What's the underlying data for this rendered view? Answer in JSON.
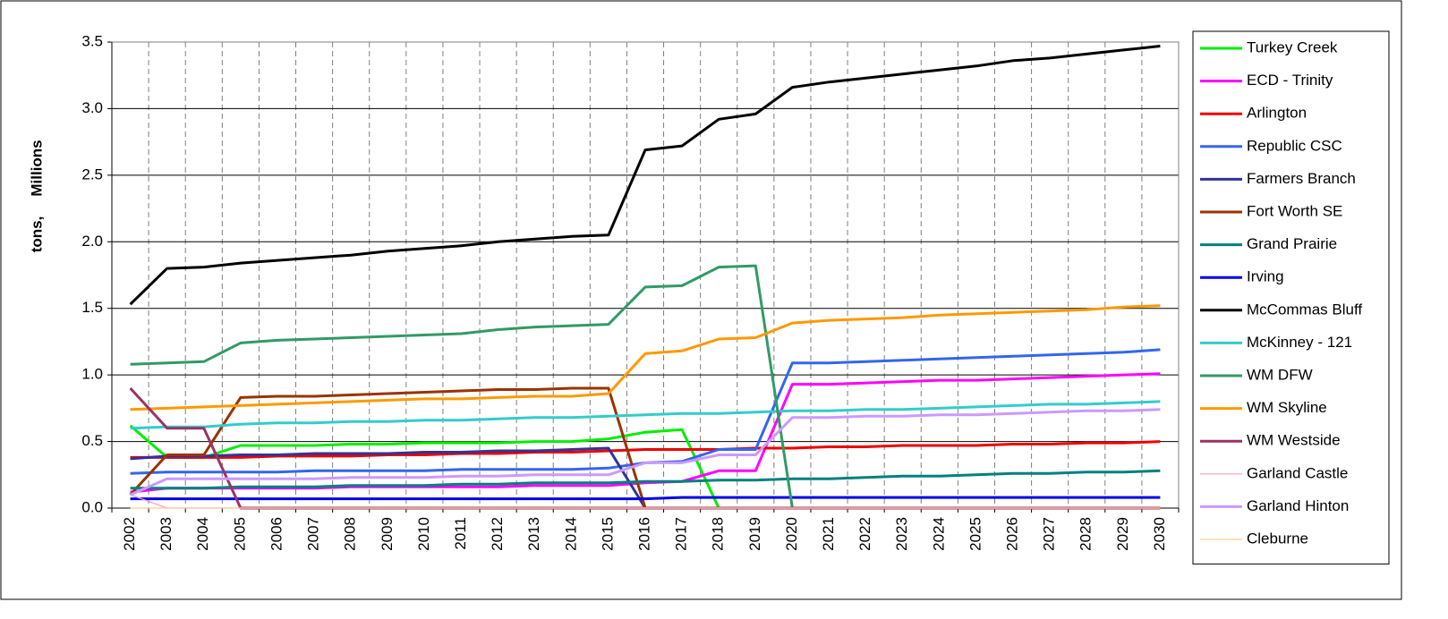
{
  "chart_data": {
    "type": "line",
    "ylabel": "tons,",
    "display_units": "Millions",
    "categories": [
      "2002",
      "2003",
      "2004",
      "2005",
      "2006",
      "2007",
      "2008",
      "2009",
      "2010",
      "2011",
      "2012",
      "2013",
      "2014",
      "2015",
      "2016",
      "2017",
      "2018",
      "2019",
      "2020",
      "2021",
      "2022",
      "2023",
      "2024",
      "2025",
      "2026",
      "2027",
      "2028",
      "2029",
      "2030"
    ],
    "ylim": [
      0,
      3.5
    ],
    "yticks": [
      {
        "value": 0,
        "label": "0.0"
      },
      0.5,
      {
        "value": 1,
        "label": "1.0"
      },
      1.5,
      {
        "value": 2,
        "label": "2.0"
      },
      2.5,
      {
        "value": 3,
        "label": "3.0"
      },
      3.5
    ],
    "grid": true,
    "legend": "right",
    "series": [
      {
        "name": "Turkey Creek",
        "color": "#00ee00",
        "width": 3,
        "values": [
          0.62,
          0.38,
          0.38,
          0.47,
          0.47,
          0.47,
          0.48,
          0.48,
          0.49,
          0.49,
          0.49,
          0.5,
          0.5,
          0.52,
          0.57,
          0.59,
          0,
          0,
          0,
          0,
          0,
          0,
          0,
          0,
          0,
          0,
          0,
          0,
          0
        ]
      },
      {
        "name": "ECD - Trinity",
        "color": "#ff00ff",
        "width": 3,
        "values": [
          0.12,
          0.15,
          0.15,
          0.15,
          0.15,
          0.15,
          0.16,
          0.16,
          0.16,
          0.16,
          0.16,
          0.17,
          0.17,
          0.17,
          0.19,
          0.2,
          0.28,
          0.28,
          0.93,
          0.93,
          0.94,
          0.95,
          0.96,
          0.96,
          0.97,
          0.98,
          0.99,
          1.0,
          1.01
        ]
      },
      {
        "name": "Arlington",
        "color": "#ee0000",
        "width": 3,
        "values": [
          0.38,
          0.38,
          0.38,
          0.38,
          0.39,
          0.39,
          0.39,
          0.4,
          0.4,
          0.41,
          0.41,
          0.42,
          0.42,
          0.43,
          0.44,
          0.44,
          0.44,
          0.45,
          0.45,
          0.46,
          0.46,
          0.47,
          0.47,
          0.47,
          0.48,
          0.48,
          0.49,
          0.49,
          0.5
        ]
      },
      {
        "name": "Republic CSC",
        "color": "#3366ee",
        "width": 3,
        "values": [
          0.26,
          0.27,
          0.27,
          0.27,
          0.27,
          0.28,
          0.28,
          0.28,
          0.28,
          0.29,
          0.29,
          0.29,
          0.29,
          0.3,
          0.34,
          0.35,
          0.44,
          0.44,
          1.09,
          1.09,
          1.1,
          1.11,
          1.12,
          1.13,
          1.14,
          1.15,
          1.16,
          1.17,
          1.19
        ]
      },
      {
        "name": "Farmers Branch",
        "color": "#333399",
        "width": 3,
        "values": [
          0.37,
          0.39,
          0.39,
          0.4,
          0.4,
          0.41,
          0.41,
          0.41,
          0.42,
          0.42,
          0.43,
          0.43,
          0.44,
          0.45,
          0,
          0,
          0,
          0,
          0,
          0,
          0,
          0,
          0,
          0,
          0,
          0,
          0,
          0,
          0
        ]
      },
      {
        "name": "Fort Worth SE",
        "color": "#993300",
        "width": 3,
        "values": [
          0.1,
          0.4,
          0.4,
          0.83,
          0.84,
          0.84,
          0.85,
          0.86,
          0.87,
          0.88,
          0.89,
          0.89,
          0.9,
          0.9,
          0,
          0,
          0,
          0,
          0,
          0,
          0,
          0,
          0,
          0,
          0,
          0,
          0,
          0,
          0
        ]
      },
      {
        "name": "Grand Prairie",
        "color": "#008080",
        "width": 3,
        "values": [
          0.15,
          0.15,
          0.15,
          0.16,
          0.16,
          0.16,
          0.17,
          0.17,
          0.17,
          0.18,
          0.18,
          0.19,
          0.19,
          0.19,
          0.2,
          0.2,
          0.21,
          0.21,
          0.22,
          0.22,
          0.23,
          0.24,
          0.24,
          0.25,
          0.26,
          0.26,
          0.27,
          0.27,
          0.28
        ]
      },
      {
        "name": "Irving",
        "color": "#0000ee",
        "width": 3,
        "values": [
          0.07,
          0.07,
          0.07,
          0.07,
          0.07,
          0.07,
          0.07,
          0.07,
          0.07,
          0.07,
          0.07,
          0.07,
          0.07,
          0.07,
          0.07,
          0.08,
          0.08,
          0.08,
          0.08,
          0.08,
          0.08,
          0.08,
          0.08,
          0.08,
          0.08,
          0.08,
          0.08,
          0.08,
          0.08
        ]
      },
      {
        "name": "McCommas Bluff",
        "color": "#000000",
        "width": 3,
        "values": [
          1.53,
          1.8,
          1.81,
          1.84,
          1.86,
          1.88,
          1.9,
          1.93,
          1.95,
          1.97,
          2.0,
          2.02,
          2.04,
          2.05,
          2.69,
          2.72,
          2.92,
          2.96,
          3.16,
          3.2,
          3.23,
          3.26,
          3.29,
          3.32,
          3.36,
          3.38,
          3.41,
          3.44,
          3.47
        ]
      },
      {
        "name": "McKinney  - 121",
        "color": "#33cccc",
        "width": 3,
        "values": [
          0.6,
          0.61,
          0.61,
          0.63,
          0.64,
          0.64,
          0.65,
          0.65,
          0.66,
          0.66,
          0.67,
          0.68,
          0.68,
          0.69,
          0.7,
          0.71,
          0.71,
          0.72,
          0.73,
          0.73,
          0.74,
          0.74,
          0.75,
          0.76,
          0.77,
          0.78,
          0.78,
          0.79,
          0.8
        ]
      },
      {
        "name": "WM DFW",
        "color": "#339966",
        "width": 3,
        "values": [
          1.08,
          1.09,
          1.1,
          1.24,
          1.26,
          1.27,
          1.28,
          1.29,
          1.3,
          1.31,
          1.34,
          1.36,
          1.37,
          1.38,
          1.66,
          1.67,
          1.81,
          1.82,
          0,
          0,
          0,
          0,
          0,
          0,
          0,
          0,
          0,
          0,
          0
        ]
      },
      {
        "name": "WM Skyline",
        "color": "#ff9900",
        "width": 3,
        "values": [
          0.74,
          0.75,
          0.76,
          0.77,
          0.78,
          0.79,
          0.8,
          0.81,
          0.82,
          0.82,
          0.83,
          0.84,
          0.84,
          0.86,
          1.16,
          1.18,
          1.27,
          1.28,
          1.39,
          1.41,
          1.42,
          1.43,
          1.45,
          1.46,
          1.47,
          1.48,
          1.49,
          1.51,
          1.52
        ]
      },
      {
        "name": "WM Westside",
        "color": "#993366",
        "width": 3,
        "values": [
          0.9,
          0.6,
          0.6,
          0,
          0,
          0,
          0,
          0,
          0,
          0,
          0,
          0,
          0,
          0,
          0,
          0,
          0,
          0,
          0,
          0,
          0,
          0,
          0,
          0,
          0,
          0,
          0,
          0,
          0
        ]
      },
      {
        "name": "Garland Castle",
        "color": "#ff99cc",
        "width": 1.2,
        "values": [
          0.1,
          0,
          0,
          0,
          0,
          0,
          0,
          0,
          0,
          0,
          0,
          0,
          0,
          0,
          0,
          0,
          0,
          0,
          0,
          0,
          0,
          0,
          0,
          0,
          0,
          0,
          0,
          0,
          0
        ]
      },
      {
        "name": "Garland Hinton",
        "color": "#cc99ff",
        "width": 3,
        "values": [
          0.1,
          0.22,
          0.22,
          0.22,
          0.22,
          0.22,
          0.23,
          0.23,
          0.23,
          0.24,
          0.24,
          0.25,
          0.25,
          0.25,
          0.34,
          0.34,
          0.4,
          0.4,
          0.68,
          0.68,
          0.69,
          0.69,
          0.7,
          0.7,
          0.71,
          0.72,
          0.73,
          0.73,
          0.74
        ]
      },
      {
        "name": "Cleburne",
        "color": "#ffcc99",
        "width": 1.2,
        "values": [
          0,
          0,
          0,
          0,
          0,
          0,
          0,
          0,
          0,
          0,
          0,
          0,
          0,
          0,
          0,
          0,
          0,
          0,
          0,
          0,
          0,
          0,
          0,
          0,
          0,
          0,
          0,
          0,
          0
        ]
      }
    ]
  }
}
